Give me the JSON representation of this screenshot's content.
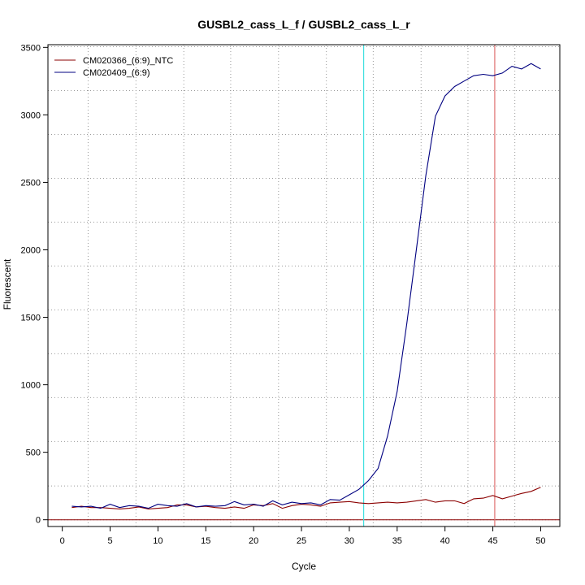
{
  "chart_data": {
    "type": "line",
    "title": "GUSBL2_cass_L_f / GUSBL2_cass_L_r",
    "xlabel": "Cycle",
    "ylabel": "Fluorescent",
    "xlim": [
      -1.5,
      52
    ],
    "ylim": [
      -50,
      3520
    ],
    "xticks": [
      0,
      5,
      10,
      15,
      20,
      25,
      30,
      35,
      40,
      45,
      50
    ],
    "yticks": [
      0,
      500,
      1000,
      1500,
      2000,
      2500,
      3000,
      3500
    ],
    "xtick_labels": [
      "0",
      "5",
      "10",
      "15",
      "20",
      "25",
      "30",
      "35",
      "40",
      "45",
      "50"
    ],
    "ytick_labels": [
      "0",
      "500",
      "1000",
      "1500",
      "2000",
      "2500",
      "3000",
      "3500"
    ],
    "grid": true,
    "grid_x": [
      2.7,
      7.7,
      12.7,
      17.6,
      22.6,
      27.6,
      32.5,
      37.5,
      42.4,
      47.3
    ],
    "grid_y": [
      0,
      250,
      580,
      905,
      1230,
      1555,
      1880,
      2205,
      2530,
      2855,
      3180,
      3505
    ],
    "vlines": [
      {
        "x": 31.5,
        "color": "#40e0e0"
      },
      {
        "x": 45.2,
        "color": "#e07070"
      }
    ],
    "hline": {
      "y": 0,
      "color": "#8b0000"
    },
    "legend_position": "top-left",
    "x": [
      1,
      2,
      3,
      4,
      5,
      6,
      7,
      8,
      9,
      10,
      11,
      12,
      13,
      14,
      15,
      16,
      17,
      18,
      19,
      20,
      21,
      22,
      23,
      24,
      25,
      26,
      27,
      28,
      29,
      30,
      31,
      32,
      33,
      34,
      35,
      36,
      37,
      38,
      39,
      40,
      41,
      42,
      43,
      44,
      45,
      46,
      47,
      48,
      49,
      50
    ],
    "series": [
      {
        "name": "CM020366_(6:9)_NTC",
        "color": "#8b0000",
        "values": [
          90,
          100,
          90,
          90,
          85,
          80,
          85,
          95,
          80,
          85,
          90,
          110,
          110,
          95,
          100,
          90,
          85,
          95,
          85,
          110,
          105,
          120,
          85,
          105,
          115,
          110,
          100,
          125,
          130,
          135,
          125,
          120,
          125,
          130,
          125,
          130,
          140,
          150,
          130,
          140,
          140,
          120,
          155,
          160,
          180,
          155,
          175,
          195,
          210,
          240
        ]
      },
      {
        "name": "CM020409_(6:9)",
        "color": "#000080",
        "values": [
          100,
          95,
          100,
          85,
          115,
          90,
          105,
          100,
          85,
          115,
          105,
          100,
          120,
          95,
          105,
          100,
          105,
          135,
          110,
          115,
          100,
          140,
          110,
          130,
          120,
          125,
          110,
          150,
          145,
          185,
          225,
          290,
          380,
          620,
          950,
          1450,
          2000,
          2550,
          2990,
          3140,
          3210,
          3250,
          3290,
          3300,
          3290,
          3310,
          3360,
          3340,
          3380,
          3340
        ]
      }
    ]
  }
}
